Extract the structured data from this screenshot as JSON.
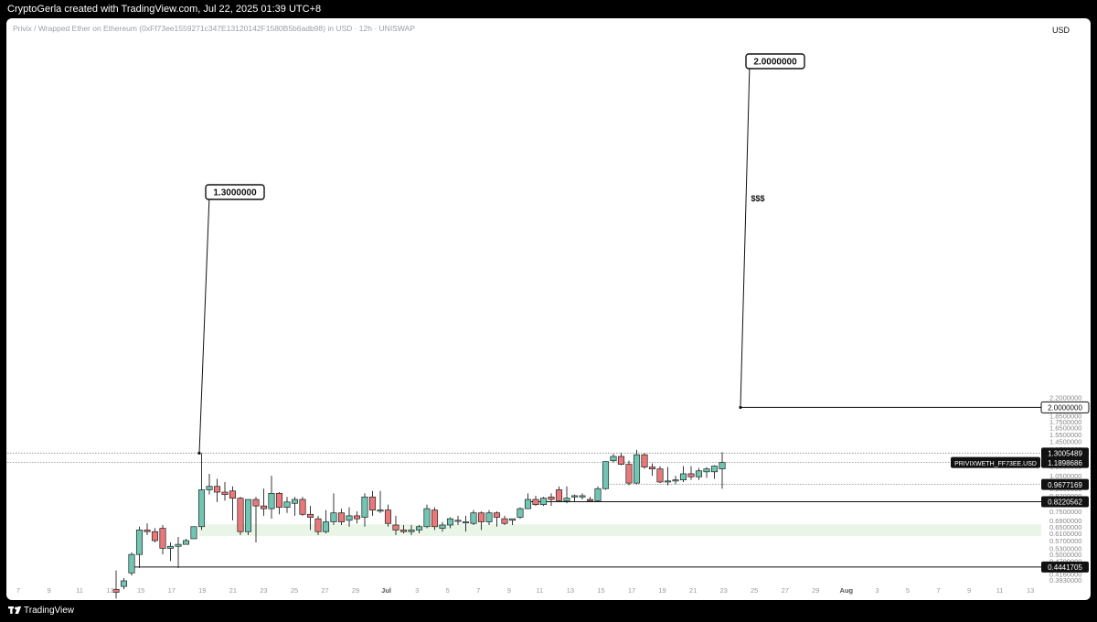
{
  "header": {
    "attribution": "CryptoGerla created with TradingView.com, Jul 22, 2025 01:39 UTC+8",
    "symbol": "Privix / Wrapped Ether on Ethereum (0xFf73ee1559271c347E13120142F1580B5b6adb98) in USD · 12h · UNISWAP",
    "currency": "USD"
  },
  "footer": {
    "brand": "TradingView"
  },
  "colors": {
    "up": "#71c5b3",
    "down": "#e8787a",
    "zone": "#e9f5e6",
    "bg": "#ffffff"
  },
  "chart_data": {
    "type": "candlestick",
    "scale": "log",
    "ylim": [
      0.38,
      2.25
    ],
    "x_ticks": [
      "7",
      "9",
      "11",
      "13",
      "15",
      "17",
      "19",
      "21",
      "23",
      "25",
      "27",
      "29",
      "Jul",
      "3",
      "5",
      "7",
      "9",
      "11",
      "13",
      "15",
      "17",
      "19",
      "21",
      "23",
      "25",
      "27",
      "29",
      "Aug",
      "3",
      "5",
      "7",
      "9",
      "11",
      "13"
    ],
    "y_ticks": [
      "2.2000000",
      "1.8500000",
      "1.7500000",
      "1.6500000",
      "1.5500000",
      "1.4500000",
      "1.3500000",
      "1.2500000",
      "1.1500000",
      "1.0500000",
      "0.9900000",
      "0.9300000",
      "0.8700000",
      "0.7500000",
      "0.6900000",
      "0.6500000",
      "0.6100000",
      "0.5700000",
      "0.5300000",
      "0.5000000",
      "0.4700000",
      "0.4160000",
      "0.3930000"
    ],
    "candles": [
      {
        "t": "Jun 12",
        "o": 0.36,
        "h": 0.43,
        "l": 0.33,
        "c": 0.35
      },
      {
        "t": "Jun 13",
        "o": 0.37,
        "h": 0.4,
        "l": 0.36,
        "c": 0.39
      },
      {
        "t": "Jun 13 12h",
        "o": 0.42,
        "h": 0.51,
        "l": 0.41,
        "c": 0.5
      },
      {
        "t": "Jun 14",
        "o": 0.5,
        "h": 0.65,
        "l": 0.44,
        "c": 0.63
      },
      {
        "t": "Jun 14 12h",
        "o": 0.63,
        "h": 0.67,
        "l": 0.6,
        "c": 0.62
      },
      {
        "t": "Jun 15",
        "o": 0.62,
        "h": 0.64,
        "l": 0.56,
        "c": 0.57
      },
      {
        "t": "Jun 15 12h",
        "o": 0.64,
        "h": 0.66,
        "l": 0.5,
        "c": 0.53
      },
      {
        "t": "Jun 16",
        "o": 0.53,
        "h": 0.56,
        "l": 0.47,
        "c": 0.54
      },
      {
        "t": "Jun 17",
        "o": 0.54,
        "h": 0.59,
        "l": 0.44,
        "c": 0.55
      },
      {
        "t": "Jun 17 12h",
        "o": 0.55,
        "h": 0.58,
        "l": 0.55,
        "c": 0.57
      },
      {
        "t": "Jun 18",
        "o": 0.58,
        "h": 0.65,
        "l": 0.58,
        "c": 0.65
      },
      {
        "t": "Jun 18 12h",
        "o": 0.65,
        "h": 1.3,
        "l": 0.63,
        "c": 0.92
      },
      {
        "t": "Jun 19",
        "o": 0.92,
        "h": 1.07,
        "l": 0.88,
        "c": 0.95
      },
      {
        "t": "Jun 19 12h",
        "o": 0.95,
        "h": 1.02,
        "l": 0.82,
        "c": 0.9
      },
      {
        "t": "Jun 20",
        "o": 0.9,
        "h": 0.99,
        "l": 0.83,
        "c": 0.88
      },
      {
        "t": "Jun 20 12h",
        "o": 0.91,
        "h": 0.95,
        "l": 0.69,
        "c": 0.85
      },
      {
        "t": "Jun 21",
        "o": 0.85,
        "h": 0.86,
        "l": 0.6,
        "c": 0.62
      },
      {
        "t": "Jun 21 12h",
        "o": 0.62,
        "h": 0.84,
        "l": 0.6,
        "c": 0.84
      },
      {
        "t": "Jun 22",
        "o": 0.84,
        "h": 0.86,
        "l": 0.56,
        "c": 0.79
      },
      {
        "t": "Jun 23",
        "o": 0.79,
        "h": 0.93,
        "l": 0.72,
        "c": 0.77
      },
      {
        "t": "Jun 23 12h",
        "o": 0.77,
        "h": 1.05,
        "l": 0.7,
        "c": 0.89
      },
      {
        "t": "Jun 24",
        "o": 0.89,
        "h": 0.9,
        "l": 0.73,
        "c": 0.78
      },
      {
        "t": "Jun 24 12h",
        "o": 0.78,
        "h": 0.86,
        "l": 0.74,
        "c": 0.82
      },
      {
        "t": "Jun 25",
        "o": 0.81,
        "h": 0.86,
        "l": 0.72,
        "c": 0.84
      },
      {
        "t": "Jun 25 12h",
        "o": 0.84,
        "h": 0.86,
        "l": 0.72,
        "c": 0.73
      },
      {
        "t": "Jun 26",
        "o": 0.73,
        "h": 0.79,
        "l": 0.63,
        "c": 0.71
      },
      {
        "t": "Jun 26 12h",
        "o": 0.7,
        "h": 0.72,
        "l": 0.6,
        "c": 0.62
      },
      {
        "t": "Jun 27",
        "o": 0.62,
        "h": 0.76,
        "l": 0.61,
        "c": 0.68
      },
      {
        "t": "Jun 28",
        "o": 0.68,
        "h": 0.89,
        "l": 0.66,
        "c": 0.74
      },
      {
        "t": "Jun 28 12h",
        "o": 0.74,
        "h": 0.77,
        "l": 0.66,
        "c": 0.68
      },
      {
        "t": "Jun 29",
        "o": 0.69,
        "h": 0.78,
        "l": 0.65,
        "c": 0.72
      },
      {
        "t": "Jun 29 12h",
        "o": 0.72,
        "h": 0.75,
        "l": 0.67,
        "c": 0.7
      },
      {
        "t": "Jun 30",
        "o": 0.71,
        "h": 0.89,
        "l": 0.65,
        "c": 0.86
      },
      {
        "t": "Jun 30 12h",
        "o": 0.86,
        "h": 0.91,
        "l": 0.72,
        "c": 0.76
      },
      {
        "t": "Jul 1",
        "o": 0.76,
        "h": 0.91,
        "l": 0.74,
        "c": 0.76
      },
      {
        "t": "Jul 1 12h",
        "o": 0.76,
        "h": 0.8,
        "l": 0.65,
        "c": 0.67
      },
      {
        "t": "Jul 2",
        "o": 0.66,
        "h": 0.72,
        "l": 0.6,
        "c": 0.63
      },
      {
        "t": "Jul 2 12h",
        "o": 0.63,
        "h": 0.66,
        "l": 0.61,
        "c": 0.62
      },
      {
        "t": "Jul 3",
        "o": 0.62,
        "h": 0.66,
        "l": 0.6,
        "c": 0.63
      },
      {
        "t": "Jul 3 12h",
        "o": 0.63,
        "h": 0.66,
        "l": 0.61,
        "c": 0.65
      },
      {
        "t": "Jul 4",
        "o": 0.65,
        "h": 0.8,
        "l": 0.64,
        "c": 0.77
      },
      {
        "t": "Jul 4 12h",
        "o": 0.76,
        "h": 0.78,
        "l": 0.63,
        "c": 0.65
      },
      {
        "t": "Jul 5",
        "o": 0.64,
        "h": 0.68,
        "l": 0.62,
        "c": 0.66
      },
      {
        "t": "Jul 5 12h",
        "o": 0.66,
        "h": 0.71,
        "l": 0.64,
        "c": 0.7
      },
      {
        "t": "Jul 6",
        "o": 0.69,
        "h": 0.72,
        "l": 0.66,
        "c": 0.69
      },
      {
        "t": "Jul 6 12h",
        "o": 0.68,
        "h": 0.72,
        "l": 0.62,
        "c": 0.68
      },
      {
        "t": "Jul 7",
        "o": 0.67,
        "h": 0.76,
        "l": 0.66,
        "c": 0.74
      },
      {
        "t": "Jul 7 12h",
        "o": 0.74,
        "h": 0.75,
        "l": 0.63,
        "c": 0.68
      },
      {
        "t": "Jul 8",
        "o": 0.68,
        "h": 0.76,
        "l": 0.66,
        "c": 0.74
      },
      {
        "t": "Jul 8 12h",
        "o": 0.74,
        "h": 0.75,
        "l": 0.65,
        "c": 0.71
      },
      {
        "t": "Jul 9",
        "o": 0.7,
        "h": 0.72,
        "l": 0.66,
        "c": 0.67
      },
      {
        "t": "Jul 9 12h",
        "o": 0.69,
        "h": 0.7,
        "l": 0.66,
        "c": 0.7
      },
      {
        "t": "Jul 10",
        "o": 0.71,
        "h": 0.78,
        "l": 0.7,
        "c": 0.77
      },
      {
        "t": "Jul 10 12h",
        "o": 0.77,
        "h": 0.89,
        "l": 0.77,
        "c": 0.84
      },
      {
        "t": "Jul 11",
        "o": 0.84,
        "h": 0.87,
        "l": 0.79,
        "c": 0.8
      },
      {
        "t": "Jul 11 12h",
        "o": 0.8,
        "h": 0.86,
        "l": 0.79,
        "c": 0.85
      },
      {
        "t": "Jul 12",
        "o": 0.86,
        "h": 0.89,
        "l": 0.79,
        "c": 0.84
      },
      {
        "t": "Jul 12 12h",
        "o": 0.92,
        "h": 0.95,
        "l": 0.82,
        "c": 0.83
      },
      {
        "t": "Jul 13",
        "o": 0.83,
        "h": 0.95,
        "l": 0.81,
        "c": 0.85
      },
      {
        "t": "Jul 13 12h",
        "o": 0.86,
        "h": 0.88,
        "l": 0.82,
        "c": 0.87
      },
      {
        "t": "Jul 14",
        "o": 0.86,
        "h": 0.89,
        "l": 0.84,
        "c": 0.87
      },
      {
        "t": "Jul 14 12h",
        "o": 0.84,
        "h": 0.86,
        "l": 0.82,
        "c": 0.83
      },
      {
        "t": "Jul 15",
        "o": 0.83,
        "h": 0.95,
        "l": 0.82,
        "c": 0.93
      },
      {
        "t": "Jul 15 12h",
        "o": 0.93,
        "h": 1.2,
        "l": 0.92,
        "c": 1.2
      },
      {
        "t": "Jul 16",
        "o": 1.21,
        "h": 1.29,
        "l": 1.19,
        "c": 1.26
      },
      {
        "t": "Jul 16 12h",
        "o": 1.26,
        "h": 1.3,
        "l": 1.16,
        "c": 1.17
      },
      {
        "t": "Jul 17",
        "o": 1.17,
        "h": 1.21,
        "l": 0.96,
        "c": 0.98
      },
      {
        "t": "Jul 17 12h",
        "o": 0.98,
        "h": 1.34,
        "l": 0.97,
        "c": 1.28
      },
      {
        "t": "Jul 18",
        "o": 1.28,
        "h": 1.3,
        "l": 1.12,
        "c": 1.14
      },
      {
        "t": "Jul 18 12h",
        "o": 1.14,
        "h": 1.18,
        "l": 1.05,
        "c": 1.12
      },
      {
        "t": "Jul 19",
        "o": 1.12,
        "h": 1.15,
        "l": 0.98,
        "c": 0.99
      },
      {
        "t": "Jul 19 12h",
        "o": 0.99,
        "h": 1.14,
        "l": 0.96,
        "c": 1.0
      },
      {
        "t": "Jul 20",
        "o": 1.0,
        "h": 1.05,
        "l": 0.97,
        "c": 1.01
      },
      {
        "t": "Jul 20 12h",
        "o": 1.01,
        "h": 1.15,
        "l": 0.99,
        "c": 1.07
      },
      {
        "t": "Jul 21",
        "o": 1.07,
        "h": 1.15,
        "l": 1.01,
        "c": 1.04
      },
      {
        "t": "Jul 21 12h",
        "o": 1.04,
        "h": 1.13,
        "l": 1.01,
        "c": 1.1
      },
      {
        "t": "Jul 22",
        "o": 1.09,
        "h": 1.14,
        "l": 1.03,
        "c": 1.12
      },
      {
        "t": "Jul 22 12h",
        "o": 1.09,
        "h": 1.16,
        "l": 1.02,
        "c": 1.15
      },
      {
        "t": "Jul 23",
        "o": 1.12,
        "h": 1.31,
        "l": 0.93,
        "c": 1.19
      }
    ],
    "price_labels": [
      {
        "text": "2.0000000",
        "value": 2.0,
        "style": "outline"
      },
      {
        "text": "1.3005489",
        "value": 1.3005489,
        "style": "solid"
      },
      {
        "text": "1.1898686",
        "value": 1.1898686,
        "style": "solid",
        "ticker": "PRIVIXWETH_FF73EE.USD"
      },
      {
        "text": "0.9677169",
        "value": 0.9677169,
        "style": "solid"
      },
      {
        "text": "0.8220562",
        "value": 0.8220562,
        "style": "solid"
      },
      {
        "text": "0.4441705",
        "value": 0.4441705,
        "style": "solid"
      }
    ],
    "callouts": [
      {
        "text": "1.3000000",
        "value": 1.3
      },
      {
        "text": "2.0000000",
        "value": 2.0
      }
    ],
    "annotation": "$$$",
    "zone": {
      "low": 0.595,
      "high": 0.665
    }
  }
}
